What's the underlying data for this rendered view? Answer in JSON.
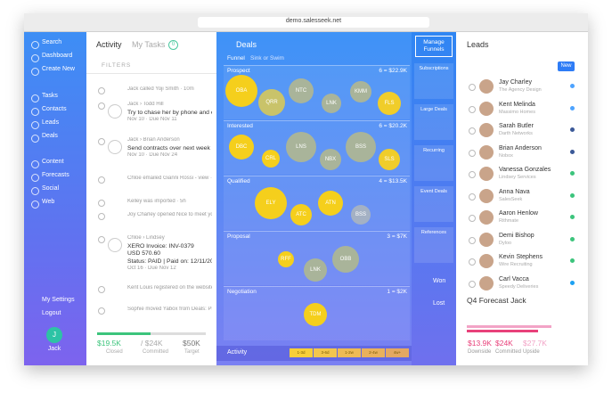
{
  "browser": {
    "url": "demo.salesseek.net"
  },
  "sidebar": {
    "items": [
      "Search",
      "Dashboard",
      "Create New",
      "Tasks",
      "Contacts",
      "Leads",
      "Deals",
      "Content",
      "Forecasts",
      "Social",
      "Web"
    ],
    "bottom": [
      "My Settings",
      "Logout"
    ],
    "user_initial": "J",
    "user": "Jack"
  },
  "activity": {
    "tabs": [
      "Activity",
      "My Tasks"
    ],
    "badge": "0",
    "filters": "FILTERS",
    "items": [
      {
        "lines": [
          "Jack called Yoji Smith · 10m"
        ]
      },
      {
        "lines": [
          "Jack › Todd Hill",
          "Try to chase her by phone and email - No answer had been",
          "Nov 10 · Due Nov 11"
        ]
      },
      {
        "lines": [
          "Jack › Brian Anderson",
          "Send contracts over next week",
          "Nov 10 · Due Nov 24"
        ]
      },
      {
        "lines": [
          "Chloe emailed Gianni Rossi - view · 5h"
        ]
      },
      {
        "lines": [
          "Kelley was imported · 5h"
        ]
      },
      {
        "lines": [
          "Joy Charley opened Nice to meet you at the event · 10h"
        ]
      },
      {
        "lines": [
          "Chloe › Lindsey",
          "XERO Invoice: INV-0379",
          "USD 570.60",
          "Status: PAID | Paid on: 12/11/2015",
          "Oct 16 · Due Nov 12"
        ]
      },
      {
        "lines": [
          "Kent Louis registered on the website · 1d"
        ]
      },
      {
        "lines": [
          "Sophie moved Yabox from Deals: Prospects to Qualified ·"
        ]
      }
    ],
    "footer": [
      {
        "value": "$19.5K",
        "label": "Closed"
      },
      {
        "value": "/ $24K",
        "label": "Committed"
      },
      {
        "value": "$50K",
        "label": "Target"
      }
    ]
  },
  "deals": {
    "title": "Deals",
    "tabs": [
      "Funnel",
      "Sink or Swim"
    ],
    "stages": [
      {
        "name": "Prospect",
        "summary": "6 = $22.9K",
        "deals": [
          {
            "label": "OBA",
            "color": "#f5cf1c"
          },
          {
            "label": "QRR",
            "color": "#c9c36a"
          },
          {
            "label": "NTC",
            "color": "#a9b49a"
          },
          {
            "label": "LNK",
            "color": "#a9b49a"
          },
          {
            "label": "KMM",
            "color": "#a9b49a"
          },
          {
            "label": "FLS",
            "color": "#f0cd2a"
          }
        ]
      },
      {
        "name": "Interested",
        "summary": "6 = $20.2K",
        "deals": [
          {
            "label": "DBC",
            "color": "#f5cf1c"
          },
          {
            "label": "CRL",
            "color": "#f5cf1c"
          },
          {
            "label": "LNS",
            "color": "#a9b49a"
          },
          {
            "label": "NBX",
            "color": "#a9b49a"
          },
          {
            "label": "BSS",
            "color": "#a9b49a"
          },
          {
            "label": "SLS",
            "color": "#f0cd2a"
          }
        ]
      },
      {
        "name": "Qualified",
        "summary": "4 = $13.5K",
        "deals": [
          {
            "label": "ELY",
            "color": "#f5cf1c"
          },
          {
            "label": "ATC",
            "color": "#f5cf1c"
          },
          {
            "label": "ATN",
            "color": "#f5cf1c"
          },
          {
            "label": "BSS",
            "color": "#a4b1c4"
          }
        ]
      },
      {
        "name": "Proposal",
        "summary": "3 = $7K",
        "deals": [
          {
            "label": "RFF",
            "color": "#f5cf1c"
          },
          {
            "label": "LNK",
            "color": "#a9b49a"
          },
          {
            "label": "OBB",
            "color": "#a9b49a"
          }
        ]
      },
      {
        "name": "Negotiation",
        "summary": "1 = $2K",
        "deals": [
          {
            "label": "TDM",
            "color": "#f5cf1c"
          }
        ]
      }
    ],
    "activity_label": "Activity",
    "activity_scale": [
      "1-3d",
      "3-6d",
      "1-2w",
      "2-4w",
      "4w+"
    ]
  },
  "funnels": {
    "manage": "Manage Funnels",
    "items": [
      "Subscriptions",
      "Large Deals",
      "Recurring",
      "Event Deals",
      "References"
    ],
    "won": "Won",
    "lost": "Lost"
  },
  "leads": {
    "title": "Leads",
    "new": "New",
    "items": [
      {
        "name": "Jay Charley",
        "company": "The Agency Design"
      },
      {
        "name": "Kent Melinda",
        "company": "Massimo Homes"
      },
      {
        "name": "Sarah Butler",
        "company": "Darth Networks"
      },
      {
        "name": "Brian Anderson",
        "company": "Nobox"
      },
      {
        "name": "Vanessa Gonzales",
        "company": "Lindsey Services"
      },
      {
        "name": "Anna Nava",
        "company": "SalesSeek"
      },
      {
        "name": "Aaron Henlow",
        "company": "Rithmate"
      },
      {
        "name": "Demi Bishop",
        "company": "Dyloo"
      },
      {
        "name": "Kevin Stephens",
        "company": "Wire Recruiting"
      },
      {
        "name": "Carl Vacca",
        "company": "Speedy Deliveries"
      }
    ],
    "forecast_title": "Q4 Forecast Jack",
    "forecast": [
      {
        "value": "$13.9K",
        "label": "Downside"
      },
      {
        "value": "$24K",
        "label": "Committed"
      },
      {
        "value": "$27.7K",
        "label": "Upside"
      }
    ]
  }
}
